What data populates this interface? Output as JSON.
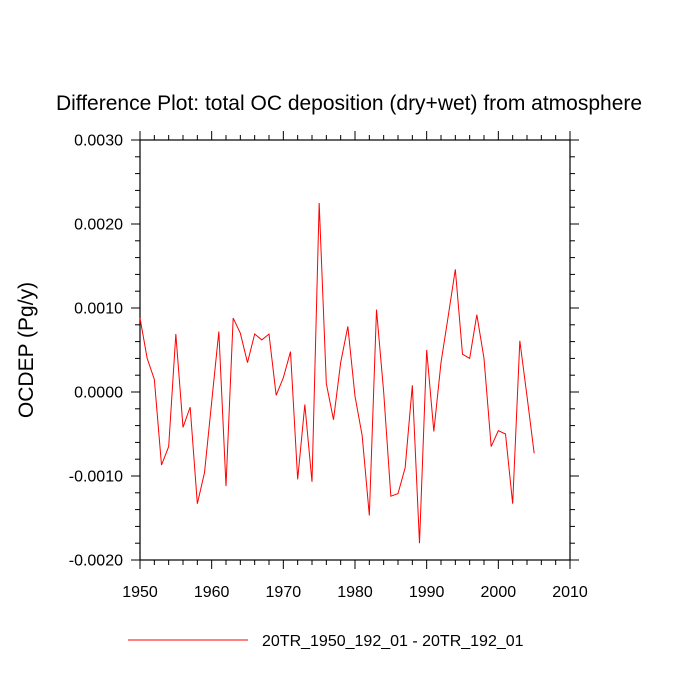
{
  "chart_data": {
    "type": "line",
    "title": "Difference Plot: total OC deposition (dry+wet) from atmosphere",
    "xlabel": "",
    "ylabel": "OCDEP  (Pg/y)",
    "xlim": [
      1950,
      2010
    ],
    "ylim": [
      -0.002,
      0.003
    ],
    "x_ticks": [
      1950,
      1960,
      1970,
      1980,
      1990,
      2000,
      2010
    ],
    "x_tick_labels": [
      "1950",
      "1960",
      "1970",
      "1980",
      "1990",
      "2000",
      "2010"
    ],
    "y_ticks": [
      -0.002,
      -0.001,
      0.0,
      0.001,
      0.002,
      0.003
    ],
    "y_tick_labels": [
      "-0.0020",
      "-0.0010",
      "0.0000",
      "0.0010",
      "0.0020",
      "0.0030"
    ],
    "legend_placement": "bottom",
    "series": [
      {
        "name": "20TR_1950_192_01 - 20TR_192_01",
        "color": "#ff0000",
        "x": [
          1950,
          1951,
          1952,
          1953,
          1954,
          1955,
          1956,
          1957,
          1958,
          1959,
          1960,
          1961,
          1962,
          1963,
          1964,
          1965,
          1966,
          1967,
          1968,
          1969,
          1970,
          1971,
          1972,
          1973,
          1974,
          1975,
          1976,
          1977,
          1978,
          1979,
          1980,
          1981,
          1982,
          1983,
          1984,
          1985,
          1986,
          1987,
          1988,
          1989,
          1990,
          1991,
          1992,
          1993,
          1994,
          1995,
          1996,
          1997,
          1998,
          1999,
          2000,
          2001,
          2002,
          2003,
          2004,
          2005
        ],
        "values": [
          0.00088,
          0.0004,
          0.00015,
          -0.00087,
          -0.00065,
          0.00069,
          -0.00042,
          -0.00018,
          -0.00133,
          -0.00096,
          -0.00012,
          0.00072,
          -0.00112,
          0.00088,
          0.0007,
          0.00035,
          0.00069,
          0.00062,
          0.00069,
          -4e-05,
          0.00017,
          0.00048,
          -0.00104,
          -0.00015,
          -0.00107,
          0.00225,
          0.0001,
          -0.00033,
          0.00035,
          0.00078,
          -5e-05,
          -0.00052,
          -0.00147,
          0.00098,
          0.0,
          -0.00124,
          -0.00121,
          -0.0009,
          8e-05,
          -0.0018,
          0.0005,
          -0.00047,
          0.00035,
          0.0009,
          0.00146,
          0.00045,
          0.0004,
          0.00092,
          0.0004,
          -0.00065,
          -0.00046,
          -0.0005,
          -0.00133,
          0.00061,
          -5e-05,
          -0.00073
        ]
      }
    ]
  }
}
